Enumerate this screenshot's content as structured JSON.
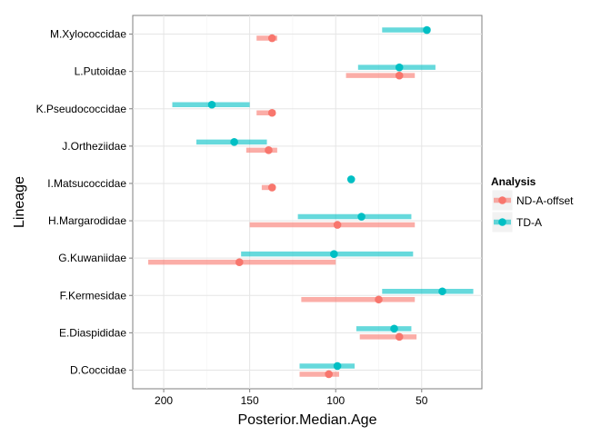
{
  "chart_data": {
    "type": "range-dot",
    "title": "",
    "xlabel": "Posterior.Median.Age",
    "ylabel": "Lineage",
    "x_reversed": true,
    "xlim": [
      218,
      15
    ],
    "xticks": [
      200,
      150,
      100,
      50
    ],
    "grid": true,
    "legend_position": "right",
    "legend_title": "Analysis",
    "categories": [
      "D.Coccidae",
      "E.Diaspididae",
      "F.Kermesidae",
      "G.Kuwaniidae",
      "H.Margarodidae",
      "I.Matsucoccidae",
      "J.Ortheziidae",
      "K.Pseudococcidae",
      "L.Putoidae",
      "M.Xylococcidae"
    ],
    "series": [
      {
        "name": "ND-A-offset",
        "color": "#F8766D",
        "median": [
          104,
          63,
          75,
          156,
          99,
          137,
          139,
          137,
          63,
          137
        ],
        "lower": [
          98,
          53,
          54,
          100,
          54,
          135,
          134,
          135,
          54,
          134
        ],
        "upper": [
          121,
          86,
          120,
          209,
          150,
          143,
          152,
          146,
          94,
          146
        ]
      },
      {
        "name": "TD-A",
        "color": "#00BFC4",
        "median": [
          99,
          66,
          38,
          101,
          85,
          91,
          159,
          172,
          63,
          47
        ],
        "lower": [
          89,
          56,
          20,
          55,
          56,
          91,
          140,
          150,
          42,
          45
        ],
        "upper": [
          121,
          88,
          73,
          155,
          122,
          91,
          181,
          195,
          87,
          73
        ]
      }
    ]
  }
}
